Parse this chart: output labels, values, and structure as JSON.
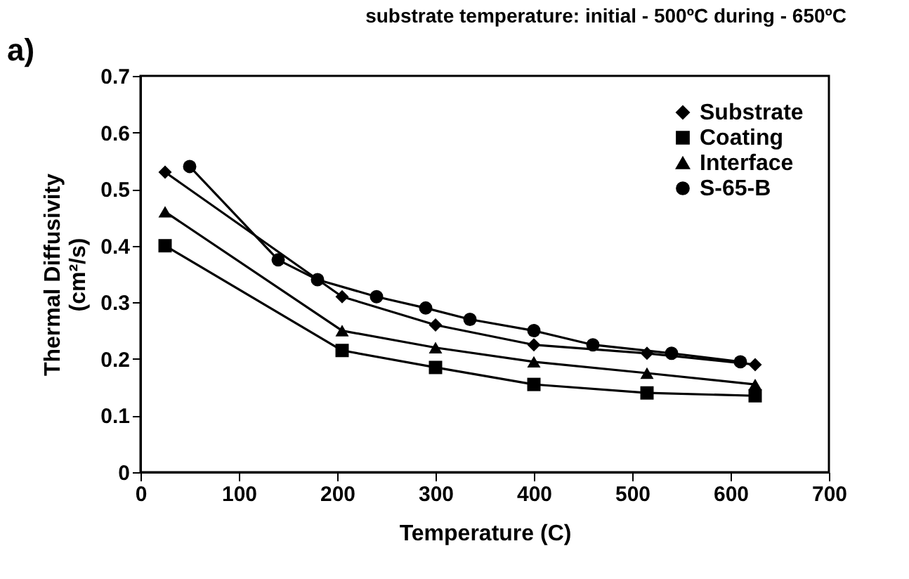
{
  "chart_data": {
    "type": "line",
    "title": "substrate temperature: initial - 500ºC  during - 650ºC",
    "xlabel": "Temperature (C)",
    "ylabel": "Thermal Diffusivity\n(cm²/s)",
    "annotations": [
      "a)"
    ],
    "xlim": [
      0,
      700
    ],
    "xticks": [
      0,
      100,
      200,
      300,
      400,
      500,
      600,
      700
    ],
    "ylim": [
      0,
      0.7
    ],
    "yticks": [
      0,
      0.1,
      0.2,
      0.3,
      0.4,
      0.5,
      0.6,
      0.7
    ],
    "grid": false,
    "legend": "top right",
    "line_style": "solid",
    "series": [
      {
        "name": "Substrate",
        "color": "#000000",
        "marker": "diamond",
        "x": [
          25,
          205,
          300,
          400,
          515,
          625
        ],
        "values": [
          0.53,
          0.31,
          0.26,
          0.225,
          0.21,
          0.19
        ]
      },
      {
        "name": "Coating",
        "color": "#000000",
        "marker": "square",
        "x": [
          25,
          205,
          300,
          400,
          515,
          625
        ],
        "values": [
          0.4,
          0.215,
          0.185,
          0.155,
          0.14,
          0.135
        ]
      },
      {
        "name": "Interface",
        "color": "#000000",
        "marker": "triangle",
        "x": [
          25,
          205,
          300,
          400,
          515,
          625
        ],
        "values": [
          0.46,
          0.25,
          0.22,
          0.195,
          0.175,
          0.155
        ]
      },
      {
        "name": "S-65-B",
        "color": "#000000",
        "marker": "circle",
        "x": [
          50,
          140,
          180,
          240,
          290,
          335,
          400,
          460,
          540,
          610
        ],
        "values": [
          0.54,
          0.375,
          0.34,
          0.31,
          0.29,
          0.27,
          0.25,
          0.225,
          0.21,
          0.195
        ]
      }
    ]
  }
}
